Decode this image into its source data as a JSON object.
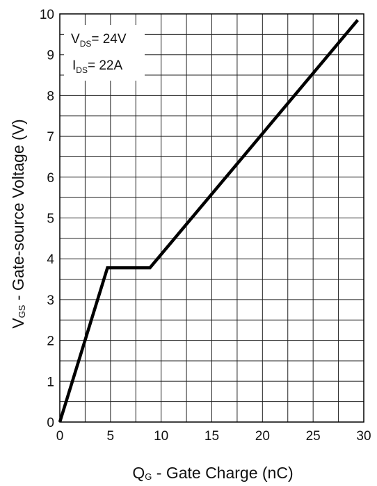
{
  "chart_data": {
    "type": "line",
    "title": "",
    "xlabel": {
      "main": "Q",
      "sub": "G",
      "rest": " - Gate Charge (nC)"
    },
    "ylabel": {
      "main": "V",
      "sub": "GS",
      "rest": " - Gate-source Voltage (V)"
    },
    "xlim": [
      0,
      30
    ],
    "ylim": [
      0,
      10
    ],
    "x_ticks": [
      0,
      5,
      10,
      15,
      20,
      25,
      30
    ],
    "y_ticks": [
      0,
      1,
      2,
      3,
      4,
      5,
      6,
      7,
      8,
      9,
      10
    ],
    "grid": true,
    "grid_step_x": 2.5,
    "grid_step_y": 0.5,
    "series": [
      {
        "points": [
          [
            0,
            0
          ],
          [
            4.7,
            3.78
          ],
          [
            8.9,
            3.78
          ],
          [
            29.4,
            9.85
          ]
        ],
        "color": "#000000"
      }
    ],
    "annotations": [
      {
        "main": "V",
        "sub": "DS",
        "rest": "= 24V"
      },
      {
        "main": "I",
        "sub": "DS",
        "rest": "= 22A"
      }
    ]
  }
}
